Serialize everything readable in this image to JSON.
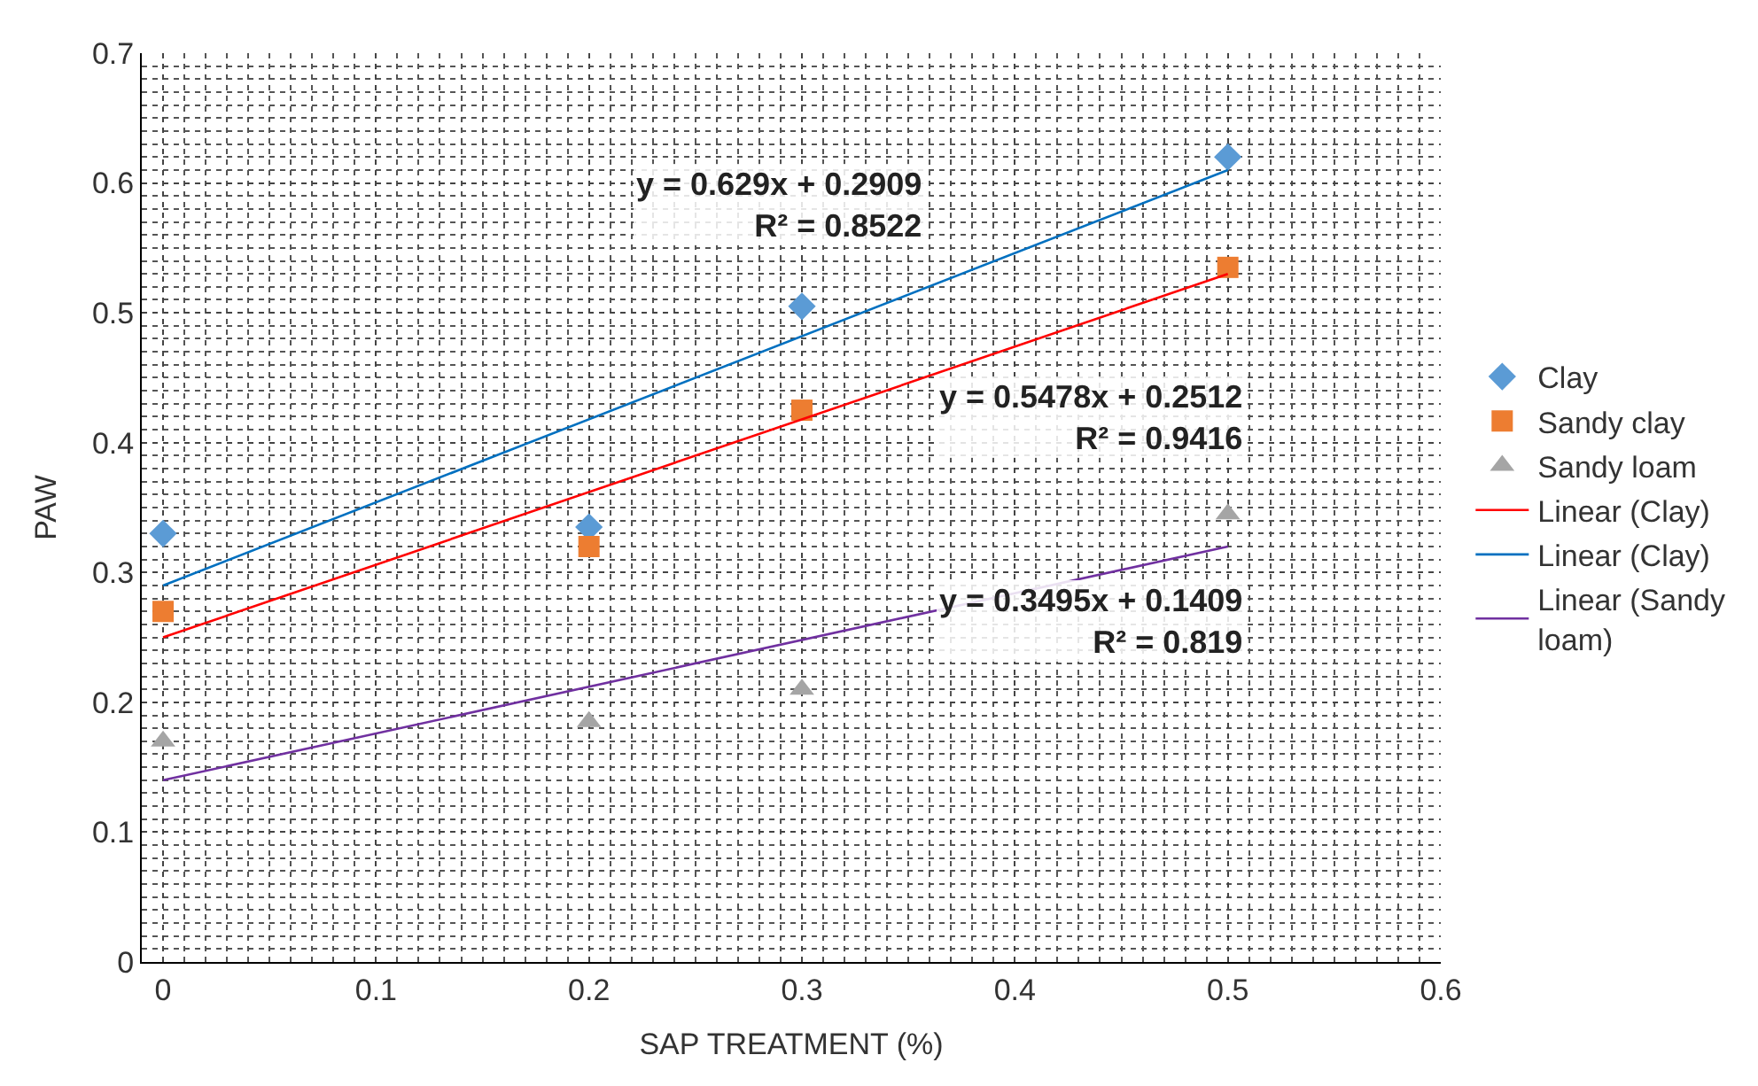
{
  "chart_data": {
    "type": "scatter",
    "xlabel": "SAP TREATMENT (%)",
    "ylabel": "PAW",
    "xlim": [
      -0.01,
      0.6
    ],
    "xticks": [
      0,
      0.1,
      0.2,
      0.3,
      0.4,
      0.5,
      0.6
    ],
    "ylim": [
      0,
      0.7
    ],
    "yticks": [
      0,
      0.1,
      0.2,
      0.3,
      0.4,
      0.5,
      0.6,
      0.7
    ],
    "grid": true,
    "legend": "right",
    "series": [
      {
        "name": "Clay",
        "marker": "diamond",
        "color": "#5b9bd5",
        "x": [
          0,
          0.2,
          0.3,
          0.5
        ],
        "values": [
          0.33,
          0.335,
          0.505,
          0.62
        ]
      },
      {
        "name": "Sandy clay",
        "marker": "square",
        "color": "#ed7d31",
        "x": [
          0,
          0.2,
          0.3,
          0.5
        ],
        "values": [
          0.27,
          0.32,
          0.425,
          0.535
        ]
      },
      {
        "name": "Sandy loam",
        "marker": "triangle",
        "color": "#a5a5a5",
        "x": [
          0,
          0.2,
          0.3,
          0.5
        ],
        "values": [
          0.17,
          0.185,
          0.21,
          0.345
        ]
      },
      {
        "name": "Linear (Clay)",
        "type": "line",
        "marker": "none",
        "color": "#ff0000",
        "x": [
          0,
          0.5
        ],
        "values": [
          0.25,
          0.53
        ]
      },
      {
        "name": "Linear (Clay)",
        "type": "line",
        "marker": "none",
        "color": "#0070c0",
        "x": [
          0,
          0.5
        ],
        "values": [
          0.29,
          0.61
        ]
      },
      {
        "name": "Linear (Sandy loam)",
        "type": "line",
        "marker": "none",
        "color": "#7030a0",
        "x": [
          0,
          0.5
        ],
        "values": [
          0.14,
          0.32
        ]
      }
    ],
    "annotations": [
      "y = 0.629x + 0.2909\nR² = 0.8522",
      "y = 0.5478x + 0.2512\nR² = 0.9416",
      "y = 0.3495x + 0.1409\nR² = 0.819"
    ]
  }
}
